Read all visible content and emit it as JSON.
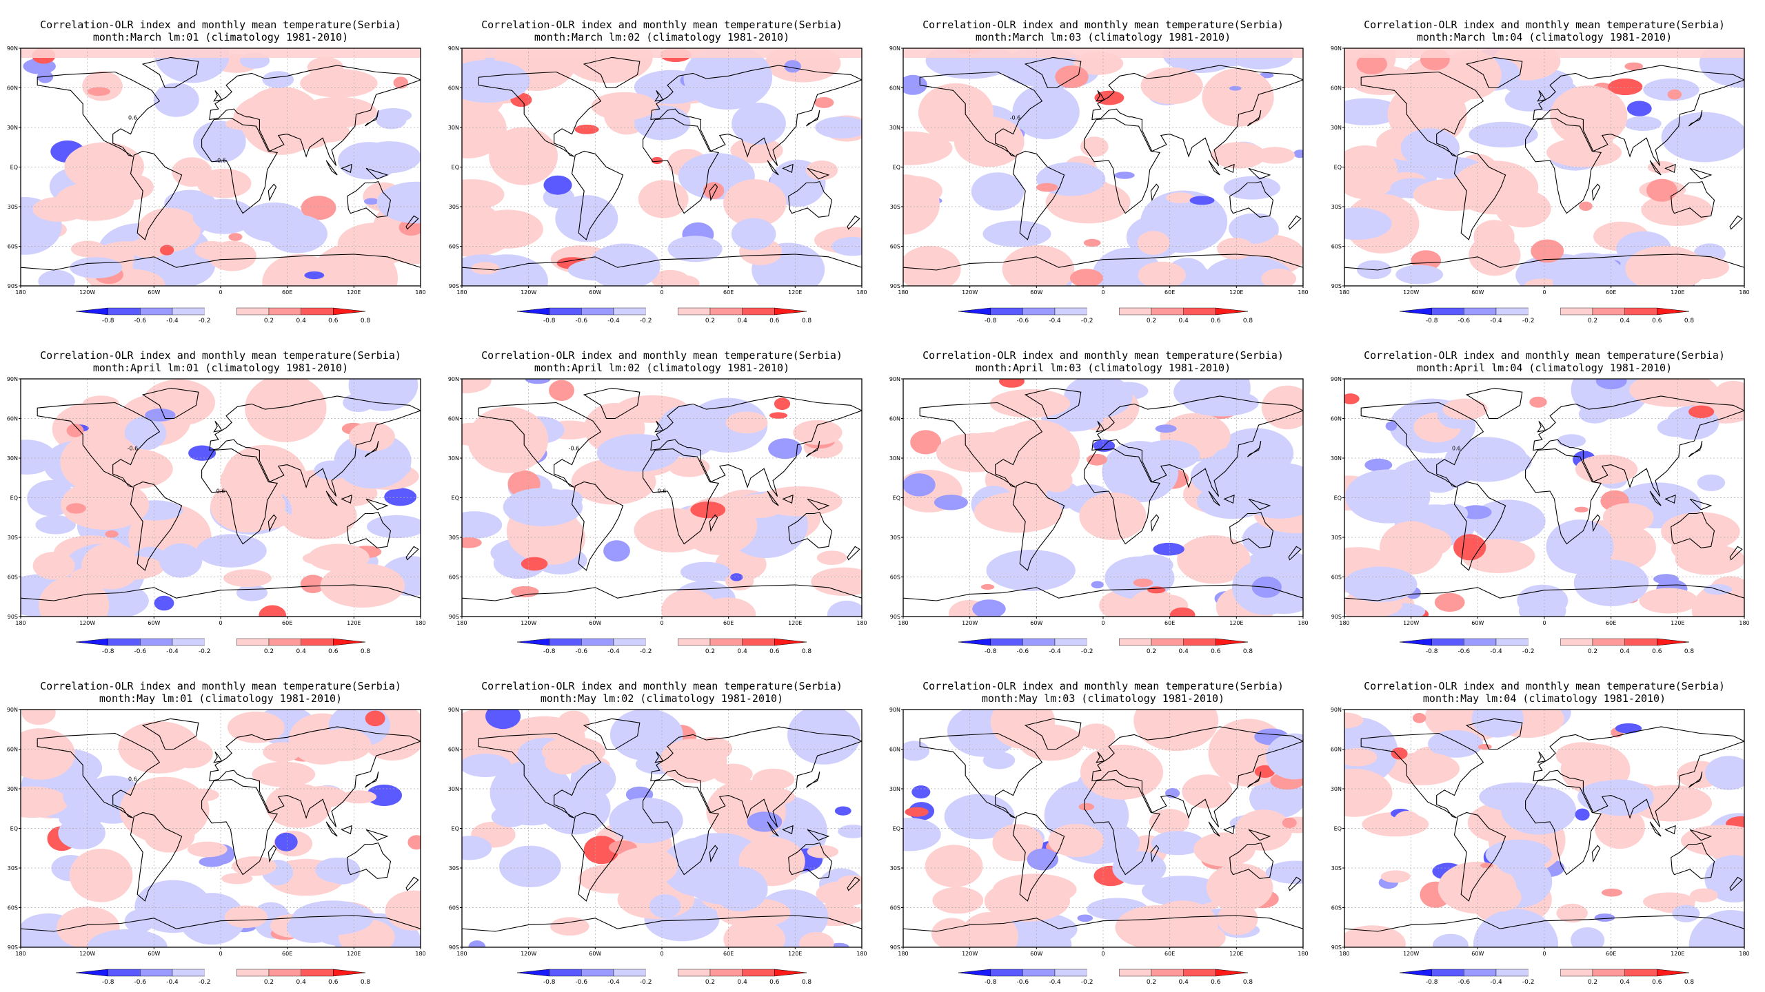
{
  "variable_title": "Correlation-OLR index and monthly mean temperature(Serbia)",
  "climatology": "(climatology 1981-2010)",
  "lead_prefix": "lm:",
  "rows": [
    {
      "month_label": "month:March"
    },
    {
      "month_label": "month:April"
    },
    {
      "month_label": "month:May"
    }
  ],
  "leads": [
    "01",
    "02",
    "03",
    "04"
  ],
  "lat_ticks": [
    "90N",
    "60N",
    "30N",
    "EQ",
    "30S",
    "60S",
    "90S"
  ],
  "lon_ticks": [
    "180",
    "120W",
    "60W",
    "0",
    "60E",
    "120E",
    "180"
  ],
  "colorbar": {
    "ticks": [
      "-0.8",
      "-0.6",
      "-0.4",
      "-0.2",
      "0.2",
      "0.4",
      "0.6",
      "0.8"
    ],
    "colors": [
      "#1a1aff",
      "#5a5aff",
      "#9a9aff",
      "#d0d0ff",
      "#ffffff",
      "#ffd0d0",
      "#ff9a9a",
      "#ff5a5a",
      "#ff1a1a"
    ]
  },
  "contour_labels": [
    {
      "panel": [
        0,
        0
      ],
      "text": "0.6"
    },
    {
      "panel": [
        0,
        0
      ],
      "text": "-0.6"
    },
    {
      "panel": [
        0,
        2
      ],
      "text": "-0.6"
    },
    {
      "panel": [
        1,
        0
      ],
      "text": "-0.6"
    },
    {
      "panel": [
        1,
        0
      ],
      "text": "0.6"
    },
    {
      "panel": [
        1,
        1
      ],
      "text": "-0.6"
    },
    {
      "panel": [
        1,
        1
      ],
      "text": "0.6"
    },
    {
      "panel": [
        1,
        3
      ],
      "text": "0.6"
    },
    {
      "panel": [
        2,
        0
      ],
      "text": "0.6"
    }
  ]
}
